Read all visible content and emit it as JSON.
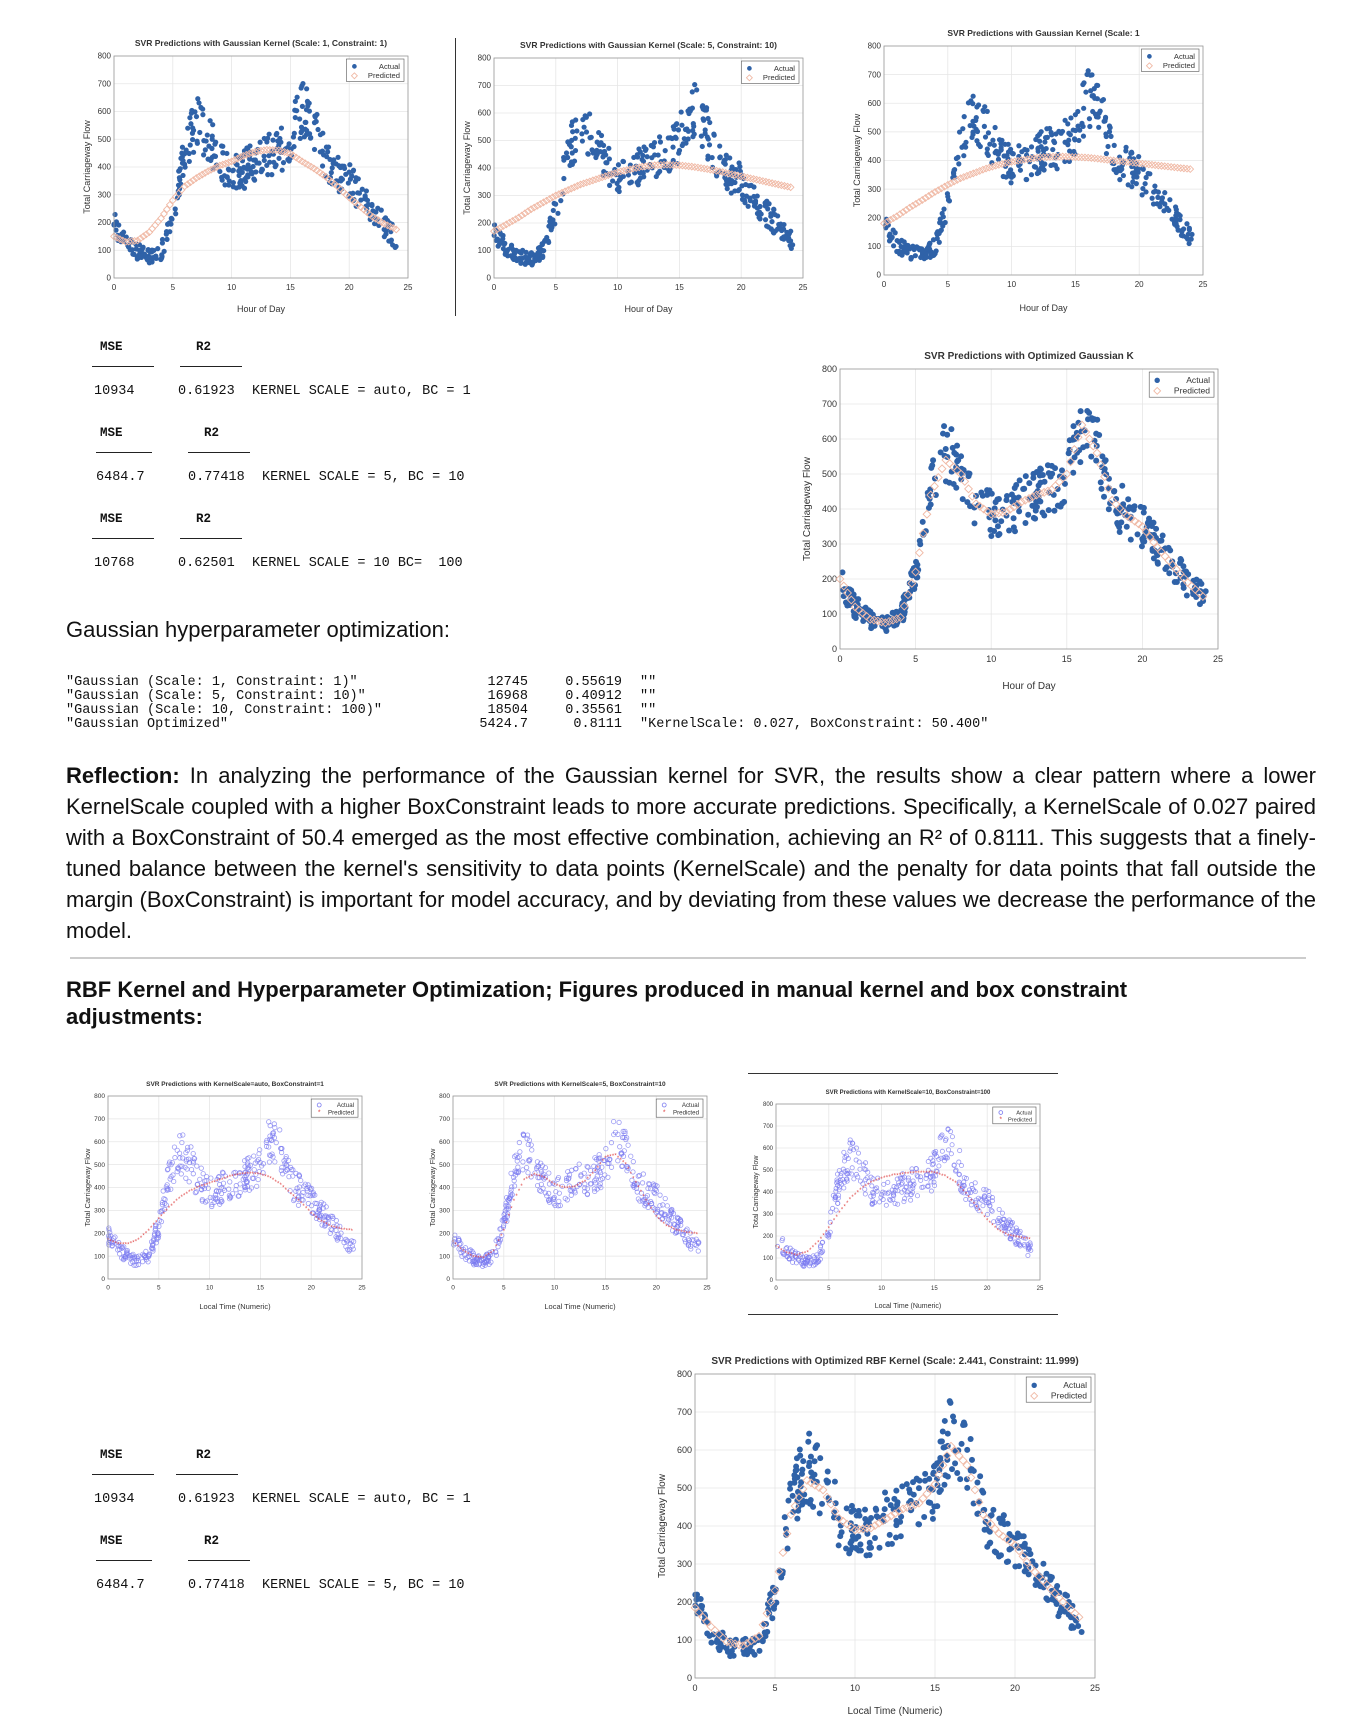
{
  "gaussian_tables": [
    {
      "mse_label": "MSE",
      "r2_label": "R2",
      "mse": "10934",
      "r2": "0.61923",
      "note": "KERNEL SCALE = auto, BC = 1"
    },
    {
      "mse_label": "MSE",
      "r2_label": "R2",
      "mse": "6484.7",
      "r2": "0.77418",
      "note": "KERNEL SCALE = 5, BC = 10"
    },
    {
      "mse_label": "MSE",
      "r2_label": "R2",
      "mse": "10768",
      "r2": "0.62501",
      "note": "KERNEL SCALE = 10 BC=  100"
    }
  ],
  "optimization": {
    "title": "Gaussian hyperparameter optimization:",
    "rows": [
      {
        "name": "\"Gaussian (Scale: 1, Constraint: 1)\"",
        "mse": "12745",
        "r2": "0.55619",
        "params": "\"\""
      },
      {
        "name": "\"Gaussian (Scale: 5, Constraint: 10)\"",
        "mse": "16968",
        "r2": "0.40912",
        "params": "\"\""
      },
      {
        "name": "\"Gaussian (Scale: 10, Constraint: 100)\"",
        "mse": "18504",
        "r2": "0.35561",
        "params": "\"\""
      },
      {
        "name": "\"Gaussian Optimized\"",
        "mse": "5424.7",
        "r2": "0.8111",
        "params": "\"KernelScale: 0.027, BoxConstraint: 50.400\""
      }
    ]
  },
  "reflection": {
    "label": "Reflection:",
    "text": " In analyzing the performance of the Gaussian kernel for SVR, the results show a clear pattern where a lower KernelScale coupled with a higher BoxConstraint leads to more accurate predictions. Specifically, a KernelScale of 0.027 paired with a BoxConstraint of 50.4 emerged as the most effective combination, achieving an R² of 0.8111. This suggests that a finely-tuned balance between the kernel's sensitivity to data points (KernelScale) and the penalty for data points that fall outside the margin (BoxConstraint) is important for model accuracy, and by deviating from these values we decrease the performance of the model."
  },
  "rbf_section_title": "RBF Kernel and Hyperparameter Optimization; Figures produced in manual kernel and box constraint adjustments:",
  "rbf_tables": [
    {
      "mse_label": "MSE",
      "r2_label": "R2",
      "mse": "10934",
      "r2": "0.61923",
      "note": "KERNEL SCALE = auto, BC = 1"
    },
    {
      "mse_label": "MSE",
      "r2_label": "R2",
      "mse": "6484.7",
      "r2": "0.77418",
      "note": "KERNEL SCALE = 5, BC = 10"
    }
  ],
  "colors": {
    "actual_filled": "#2f62a8",
    "predicted_gauss": "#f0b9a5",
    "actual_open": "#7a7af0",
    "predicted_rbf": "#e04848"
  },
  "chart_data": [
    {
      "type": "scatter",
      "title": "SVR Predictions with Gaussian Kernel (Scale: 1, Constraint: 1)",
      "xlabel": "Hour of Day",
      "ylabel": "Total Carriageway Flow",
      "xlim": [
        0,
        25
      ],
      "ylim": [
        0,
        800
      ],
      "xticks": [
        0,
        5,
        10,
        15,
        20,
        25
      ],
      "yticks": [
        0,
        100,
        200,
        300,
        400,
        500,
        600,
        700,
        800
      ],
      "legend": [
        "Actual",
        "Predicted"
      ],
      "legend_position": "top-right",
      "grid": true,
      "style": "gauss",
      "x": [
        0,
        1,
        2,
        3,
        4,
        5,
        6,
        7,
        8,
        9,
        10,
        11,
        12,
        13,
        14,
        15,
        16,
        17,
        18,
        19,
        20,
        21,
        22,
        23,
        24
      ],
      "actual": [
        195,
        130,
        95,
        80,
        95,
        210,
        450,
        560,
        510,
        420,
        380,
        390,
        420,
        440,
        455,
        500,
        620,
        560,
        420,
        380,
        350,
        290,
        240,
        190,
        140
      ],
      "predicted": [
        150,
        130,
        135,
        165,
        215,
        280,
        330,
        360,
        385,
        405,
        420,
        440,
        455,
        462,
        460,
        448,
        420,
        395,
        365,
        330,
        290,
        255,
        220,
        195,
        175
      ],
      "series_names": [
        "Actual",
        "Predicted"
      ]
    },
    {
      "type": "scatter",
      "title": "SVR Predictions with Gaussian Kernel (Scale: 5, Constraint: 10)",
      "xlabel": "Hour of Day",
      "ylabel": "Total Carriageway Flow",
      "xlim": [
        0,
        25
      ],
      "ylim": [
        0,
        800
      ],
      "xticks": [
        0,
        5,
        10,
        15,
        20,
        25
      ],
      "yticks": [
        0,
        100,
        200,
        300,
        400,
        500,
        600,
        700,
        800
      ],
      "legend": [
        "Actual",
        "Predicted"
      ],
      "legend_position": "top-right",
      "grid": true,
      "style": "gauss",
      "x": [
        0,
        1,
        2,
        3,
        4,
        5,
        6,
        7,
        8,
        9,
        10,
        11,
        12,
        13,
        14,
        15,
        16,
        17,
        18,
        19,
        20,
        21,
        22,
        23,
        24
      ],
      "actual": [
        170,
        110,
        80,
        70,
        100,
        250,
        460,
        560,
        510,
        420,
        380,
        390,
        420,
        440,
        455,
        500,
        620,
        560,
        420,
        380,
        350,
        290,
        240,
        190,
        140
      ],
      "predicted": [
        170,
        195,
        220,
        250,
        275,
        300,
        320,
        340,
        355,
        370,
        385,
        395,
        405,
        410,
        412,
        410,
        405,
        398,
        390,
        380,
        370,
        360,
        350,
        340,
        330
      ],
      "series_names": [
        "Actual",
        "Predicted"
      ]
    },
    {
      "type": "scatter",
      "title": "SVR Predictions with Gaussian Kernel (Scale: 1",
      "xlabel": "Hour of Day",
      "ylabel": "Total Carriageway Flow",
      "xlim": [
        0,
        25
      ],
      "ylim": [
        0,
        800
      ],
      "xticks": [
        0,
        5,
        10,
        15,
        20,
        25
      ],
      "yticks": [
        0,
        100,
        200,
        300,
        400,
        500,
        600,
        700,
        800
      ],
      "legend": [
        "Actual",
        "Predicted"
      ],
      "legend_position": "top-right",
      "grid": true,
      "style": "gauss",
      "x": [
        0,
        1,
        2,
        3,
        4,
        5,
        6,
        7,
        8,
        9,
        10,
        11,
        12,
        13,
        14,
        15,
        16,
        17,
        18,
        19,
        20,
        21,
        22,
        23,
        24
      ],
      "actual": [
        180,
        110,
        80,
        70,
        100,
        250,
        460,
        560,
        510,
        420,
        380,
        390,
        420,
        440,
        455,
        500,
        620,
        560,
        420,
        380,
        350,
        290,
        240,
        190,
        140
      ],
      "predicted": [
        180,
        205,
        235,
        262,
        290,
        315,
        338,
        355,
        372,
        385,
        395,
        403,
        410,
        413,
        414,
        412,
        410,
        405,
        400,
        395,
        390,
        385,
        380,
        375,
        370
      ],
      "series_names": [
        "Actual",
        "Predicted"
      ]
    },
    {
      "type": "scatter",
      "title": "SVR Predictions with Optimized Gaussian K",
      "xlabel": "Hour of Day",
      "ylabel": "Total Carriageway Flow",
      "xlim": [
        0,
        25
      ],
      "ylim": [
        0,
        800
      ],
      "xticks": [
        0,
        5,
        10,
        15,
        20,
        25
      ],
      "yticks": [
        0,
        100,
        200,
        300,
        400,
        500,
        600,
        700,
        800
      ],
      "legend": [
        "Actual",
        "Predicted"
      ],
      "legend_position": "top-right",
      "grid": true,
      "style": "gauss",
      "x": [
        0,
        1,
        2,
        3,
        4,
        5,
        6,
        7,
        8,
        9,
        10,
        11,
        12,
        13,
        14,
        15,
        16,
        17,
        18,
        19,
        20,
        21,
        22,
        23,
        24
      ],
      "actual": [
        200,
        120,
        85,
        75,
        90,
        220,
        460,
        560,
        510,
        420,
        380,
        390,
        420,
        440,
        455,
        500,
        640,
        580,
        430,
        380,
        350,
        290,
        240,
        190,
        150
      ],
      "predicted": [
        200,
        120,
        85,
        75,
        90,
        220,
        440,
        540,
        500,
        415,
        385,
        392,
        420,
        440,
        455,
        500,
        640,
        560,
        425,
        380,
        350,
        290,
        240,
        190,
        150
      ],
      "series_names": [
        "Actual",
        "Predicted"
      ]
    },
    {
      "type": "scatter",
      "title": "SVR Predictions with KernelScale=auto, BoxConstraint=1",
      "xlabel": "Local Time (Numeric)",
      "ylabel": "Total Carriageway Flow",
      "xlim": [
        0,
        25
      ],
      "ylim": [
        0,
        800
      ],
      "xticks": [
        0,
        5,
        10,
        15,
        20,
        25
      ],
      "yticks": [
        0,
        100,
        200,
        300,
        400,
        500,
        600,
        700,
        800
      ],
      "legend": [
        "Actual",
        "Predicted"
      ],
      "legend_position": "top-right",
      "grid": true,
      "style": "rbf",
      "x": [
        0,
        1,
        2,
        3,
        4,
        5,
        6,
        7,
        8,
        9,
        10,
        11,
        12,
        13,
        14,
        15,
        16,
        17,
        18,
        19,
        20,
        21,
        22,
        23,
        24
      ],
      "actual": [
        190,
        130,
        95,
        80,
        100,
        230,
        450,
        560,
        510,
        420,
        380,
        390,
        420,
        440,
        455,
        500,
        620,
        560,
        420,
        380,
        350,
        290,
        240,
        190,
        140
      ],
      "predicted": [
        170,
        150,
        150,
        170,
        210,
        260,
        310,
        350,
        380,
        400,
        415,
        430,
        445,
        455,
        460,
        455,
        440,
        410,
        370,
        330,
        285,
        250,
        225,
        215,
        210
      ],
      "series_names": [
        "Actual",
        "Predicted"
      ]
    },
    {
      "type": "scatter",
      "title": "SVR Predictions with KernelScale=5, BoxConstraint=10",
      "xlabel": "Local Time (Numeric)",
      "ylabel": "Total Carriageway Flow",
      "xlim": [
        0,
        25
      ],
      "ylim": [
        0,
        800
      ],
      "xticks": [
        0,
        5,
        10,
        15,
        20,
        25
      ],
      "yticks": [
        0,
        100,
        200,
        300,
        400,
        500,
        600,
        700,
        800
      ],
      "legend": [
        "Actual",
        "Predicted"
      ],
      "legend_position": "top-right",
      "grid": true,
      "style": "rbf",
      "x": [
        0,
        1,
        2,
        3,
        4,
        5,
        6,
        7,
        8,
        9,
        10,
        11,
        12,
        13,
        14,
        15,
        16,
        17,
        18,
        19,
        20,
        21,
        22,
        23,
        24
      ],
      "actual": [
        180,
        120,
        90,
        75,
        100,
        240,
        460,
        560,
        510,
        420,
        380,
        390,
        420,
        440,
        455,
        500,
        620,
        560,
        420,
        380,
        350,
        290,
        240,
        190,
        140
      ],
      "predicted": [
        160,
        120,
        95,
        90,
        120,
        210,
        340,
        430,
        455,
        440,
        410,
        395,
        400,
        425,
        470,
        530,
        540,
        500,
        420,
        340,
        270,
        230,
        210,
        200,
        195
      ],
      "series_names": [
        "Actual",
        "Predicted"
      ]
    },
    {
      "type": "scatter",
      "title": "SVR Predictions with KernelScale=10, BoxConstraint=100",
      "xlabel": "Local Time (Numeric)",
      "ylabel": "Total Carriageway Flow",
      "xlim": [
        0,
        25
      ],
      "ylim": [
        0,
        800
      ],
      "xticks": [
        0,
        5,
        10,
        15,
        20,
        25
      ],
      "yticks": [
        0,
        100,
        200,
        300,
        400,
        500,
        600,
        700,
        800
      ],
      "legend": [
        "Actual",
        "Predicted"
      ],
      "legend_position": "top-right",
      "grid": true,
      "style": "rbf",
      "x": [
        0,
        1,
        2,
        3,
        4,
        5,
        6,
        7,
        8,
        9,
        10,
        11,
        12,
        13,
        14,
        15,
        16,
        17,
        18,
        19,
        20,
        21,
        22,
        23,
        24
      ],
      "actual": [
        190,
        130,
        95,
        80,
        100,
        230,
        450,
        560,
        510,
        420,
        380,
        390,
        420,
        440,
        455,
        500,
        620,
        560,
        420,
        380,
        350,
        290,
        240,
        190,
        140
      ],
      "predicted": [
        150,
        120,
        110,
        125,
        170,
        235,
        305,
        365,
        410,
        440,
        460,
        472,
        480,
        485,
        487,
        485,
        470,
        440,
        390,
        330,
        270,
        225,
        200,
        190,
        185
      ],
      "series_names": [
        "Actual",
        "Predicted"
      ]
    },
    {
      "type": "scatter",
      "title": "SVR Predictions with Optimized RBF Kernel (Scale: 2.441, Constraint: 11.999)",
      "xlabel": "Local Time (Numeric)",
      "ylabel": "Total Carriageway Flow",
      "xlim": [
        0,
        25
      ],
      "ylim": [
        0,
        800
      ],
      "xticks": [
        0,
        5,
        10,
        15,
        20,
        25
      ],
      "yticks": [
        0,
        100,
        200,
        300,
        400,
        500,
        600,
        700,
        800
      ],
      "legend": [
        "Actual",
        "Predicted"
      ],
      "legend_position": "top-right",
      "grid": true,
      "style": "gauss",
      "x": [
        0,
        1,
        2,
        3,
        4,
        5,
        6,
        7,
        8,
        9,
        10,
        11,
        12,
        13,
        14,
        15,
        16,
        17,
        18,
        19,
        20,
        21,
        22,
        23,
        24
      ],
      "actual": [
        200,
        120,
        85,
        75,
        90,
        220,
        460,
        560,
        510,
        420,
        380,
        390,
        420,
        440,
        455,
        500,
        640,
        580,
        430,
        380,
        350,
        290,
        240,
        190,
        150
      ],
      "predicted": [
        185,
        135,
        95,
        85,
        110,
        230,
        430,
        520,
        495,
        420,
        390,
        395,
        420,
        445,
        460,
        510,
        610,
        560,
        430,
        380,
        350,
        290,
        245,
        200,
        160
      ],
      "series_names": [
        "Actual",
        "Predicted"
      ]
    }
  ]
}
